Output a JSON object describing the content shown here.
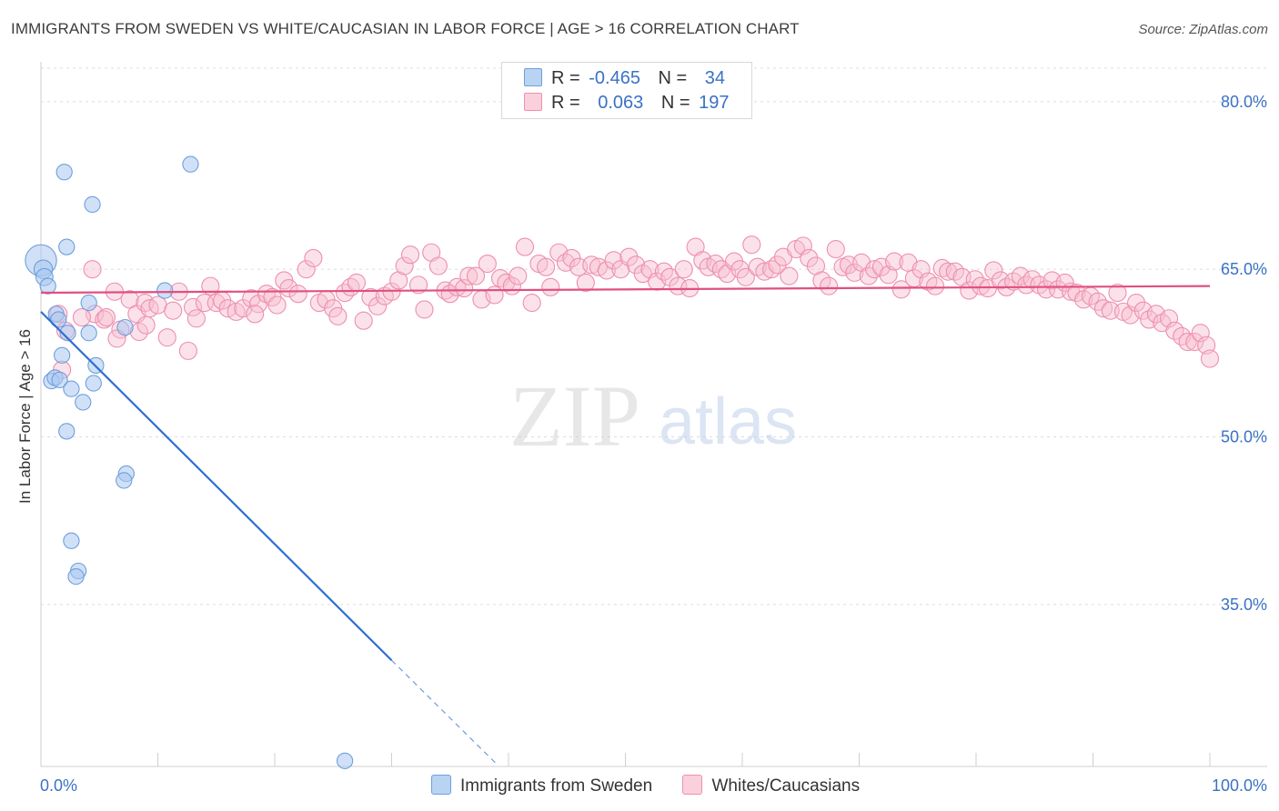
{
  "title": "IMMIGRANTS FROM SWEDEN VS WHITE/CAUCASIAN IN LABOR FORCE | AGE > 16 CORRELATION CHART",
  "source": "Source: ZipAtlas.com",
  "watermark": {
    "zip": "ZIP",
    "atlas": "atlas"
  },
  "legend": {
    "r_label": "R =",
    "n_label": "N =",
    "series1": {
      "r": "-0.465",
      "n": "34"
    },
    "series2": {
      "r": "0.063",
      "n": "197"
    }
  },
  "bottom_legend": {
    "series1": "Immigrants from Sweden",
    "series2": "Whites/Caucasians"
  },
  "colors": {
    "blue_fill": "#a9c8f0",
    "blue_stroke": "#6f9fdc",
    "blue_line": "#2f6fd0",
    "pink_fill": "#f7bfd0",
    "pink_stroke": "#ee8fae",
    "pink_line": "#e0507e",
    "axis_text": "#3a72c4"
  },
  "chart_data": {
    "type": "scatter",
    "title": "IMMIGRANTS FROM SWEDEN VS WHITE/CAUCASIAN IN LABOR FORCE | AGE > 16 CORRELATION CHART",
    "xlabel": "",
    "ylabel": "In Labor Force | Age > 16",
    "xlim": [
      0,
      100
    ],
    "ylim": [
      20.5,
      83
    ],
    "x_tick_labels": [
      "0.0%",
      "100.0%"
    ],
    "y_ticks": [
      35,
      50,
      65,
      80
    ],
    "y_tick_labels": [
      "35.0%",
      "50.0%",
      "65.0%",
      "80.0%"
    ],
    "grid": true,
    "series": [
      {
        "name": "Immigrants from Sweden",
        "color": "blue",
        "trend": {
          "x0": 0,
          "y0": 61.2,
          "x1": 30,
          "y1": 30.0,
          "dash_to_x": 39,
          "dash_to_y": 20.7
        },
        "points": [
          [
            0.0,
            65.8,
            22
          ],
          [
            0.2,
            65.0,
            13
          ],
          [
            0.3,
            64.3,
            12
          ],
          [
            0.6,
            63.5,
            11
          ],
          [
            2.0,
            73.7,
            11
          ],
          [
            2.2,
            67.0,
            11
          ],
          [
            4.4,
            70.8,
            11
          ],
          [
            12.8,
            74.4,
            11
          ],
          [
            4.1,
            62.0,
            11
          ],
          [
            1.3,
            61.0,
            11
          ],
          [
            1.5,
            60.5,
            11
          ],
          [
            2.3,
            59.3,
            11
          ],
          [
            4.1,
            59.3,
            11
          ],
          [
            7.2,
            59.8,
            11
          ],
          [
            10.6,
            63.1,
            11
          ],
          [
            1.8,
            57.3,
            11
          ],
          [
            4.7,
            56.4,
            11
          ],
          [
            0.9,
            55.0,
            11
          ],
          [
            1.2,
            55.3,
            11
          ],
          [
            1.6,
            55.1,
            11
          ],
          [
            4.5,
            54.8,
            11
          ],
          [
            2.6,
            54.3,
            11
          ],
          [
            3.6,
            53.1,
            11
          ],
          [
            2.2,
            50.5,
            11
          ],
          [
            7.3,
            46.7,
            11
          ],
          [
            7.1,
            46.1,
            11
          ],
          [
            2.6,
            40.7,
            11
          ],
          [
            3.2,
            38.0,
            11
          ],
          [
            3.0,
            37.5,
            11
          ],
          [
            26.0,
            21.0,
            11
          ]
        ]
      },
      {
        "name": "Whites/Caucasians",
        "color": "pink",
        "trend": {
          "x0": 0,
          "y0": 62.9,
          "x1": 100,
          "y1": 63.5
        },
        "points": [
          [
            1.5,
            61.0
          ],
          [
            2.1,
            59.5
          ],
          [
            1.8,
            56.0
          ],
          [
            4.4,
            65.0
          ],
          [
            4.6,
            61.0
          ],
          [
            5.4,
            60.5
          ],
          [
            5.6,
            60.7
          ],
          [
            6.3,
            63.0
          ],
          [
            6.8,
            59.6
          ],
          [
            6.5,
            58.8
          ],
          [
            7.6,
            62.3
          ],
          [
            8.2,
            61.0
          ],
          [
            8.4,
            59.4
          ],
          [
            8.9,
            62.0
          ],
          [
            9.3,
            61.5
          ],
          [
            10.0,
            61.8
          ],
          [
            10.8,
            58.9
          ],
          [
            11.3,
            61.3
          ],
          [
            11.8,
            63.0
          ],
          [
            12.6,
            57.7
          ],
          [
            13.0,
            61.6
          ],
          [
            13.3,
            60.6
          ],
          [
            14.0,
            62.0
          ],
          [
            14.5,
            63.5
          ],
          [
            15.0,
            62.0
          ],
          [
            15.5,
            62.2
          ],
          [
            16.0,
            61.5
          ],
          [
            16.7,
            61.2
          ],
          [
            17.3,
            61.5
          ],
          [
            18.0,
            62.4
          ],
          [
            18.6,
            61.9
          ],
          [
            19.3,
            62.8
          ],
          [
            19.8,
            62.5
          ],
          [
            20.2,
            61.8
          ],
          [
            20.8,
            64.0
          ],
          [
            21.2,
            63.3
          ],
          [
            22.0,
            62.8
          ],
          [
            22.7,
            65.0
          ],
          [
            23.3,
            66.0
          ],
          [
            23.8,
            62.0
          ],
          [
            24.4,
            62.3
          ],
          [
            25.0,
            61.5
          ],
          [
            25.4,
            60.8
          ],
          [
            26.0,
            62.9
          ],
          [
            26.5,
            63.4
          ],
          [
            27.0,
            63.8
          ],
          [
            27.6,
            60.4
          ],
          [
            28.2,
            62.5
          ],
          [
            28.8,
            61.7
          ],
          [
            29.4,
            62.6
          ],
          [
            30.0,
            63.0
          ],
          [
            30.6,
            64.0
          ],
          [
            31.1,
            65.3
          ],
          [
            31.6,
            66.3
          ],
          [
            32.3,
            63.6
          ],
          [
            32.8,
            61.4
          ],
          [
            33.4,
            66.5
          ],
          [
            34.0,
            65.3
          ],
          [
            34.6,
            63.1
          ],
          [
            35.0,
            62.8
          ],
          [
            35.6,
            63.4
          ],
          [
            36.2,
            63.3
          ],
          [
            36.6,
            64.4
          ],
          [
            37.2,
            64.4
          ],
          [
            37.7,
            62.3
          ],
          [
            38.2,
            65.5
          ],
          [
            38.8,
            62.7
          ],
          [
            39.3,
            64.2
          ],
          [
            39.8,
            63.8
          ],
          [
            40.3,
            63.5
          ],
          [
            40.8,
            64.4
          ],
          [
            41.4,
            67.0
          ],
          [
            42.0,
            62.0
          ],
          [
            42.6,
            65.5
          ],
          [
            43.2,
            65.2
          ],
          [
            43.6,
            63.4
          ],
          [
            44.3,
            66.5
          ],
          [
            44.9,
            65.6
          ],
          [
            45.4,
            66.0
          ],
          [
            46.0,
            65.2
          ],
          [
            46.6,
            63.8
          ],
          [
            47.1,
            65.4
          ],
          [
            47.7,
            65.2
          ],
          [
            48.4,
            64.9
          ],
          [
            49.0,
            65.8
          ],
          [
            49.6,
            65.0
          ],
          [
            50.3,
            66.1
          ],
          [
            50.9,
            65.4
          ],
          [
            51.5,
            64.6
          ],
          [
            52.1,
            65.0
          ],
          [
            52.7,
            63.9
          ],
          [
            53.3,
            64.8
          ],
          [
            53.8,
            64.3
          ],
          [
            54.5,
            63.5
          ],
          [
            55.0,
            65.0
          ],
          [
            55.5,
            63.3
          ],
          [
            56.0,
            67.0
          ],
          [
            56.6,
            65.8
          ],
          [
            57.1,
            65.2
          ],
          [
            57.7,
            65.5
          ],
          [
            58.2,
            65.0
          ],
          [
            58.7,
            64.6
          ],
          [
            59.3,
            65.7
          ],
          [
            59.8,
            65.0
          ],
          [
            60.3,
            64.3
          ],
          [
            60.8,
            67.2
          ],
          [
            61.3,
            65.2
          ],
          [
            61.9,
            64.8
          ],
          [
            62.5,
            65.0
          ],
          [
            63.0,
            65.4
          ],
          [
            63.5,
            66.1
          ],
          [
            64.0,
            64.4
          ],
          [
            64.6,
            66.8
          ],
          [
            65.2,
            67.1
          ],
          [
            65.7,
            66.0
          ],
          [
            66.3,
            65.3
          ],
          [
            66.8,
            64.0
          ],
          [
            67.4,
            63.5
          ],
          [
            68.0,
            66.8
          ],
          [
            68.6,
            65.2
          ],
          [
            69.1,
            65.4
          ],
          [
            69.6,
            64.7
          ],
          [
            70.2,
            65.6
          ],
          [
            70.8,
            64.4
          ],
          [
            71.3,
            65.0
          ],
          [
            71.9,
            65.2
          ],
          [
            72.5,
            64.5
          ],
          [
            73.0,
            65.7
          ],
          [
            73.6,
            63.2
          ],
          [
            74.2,
            65.6
          ],
          [
            74.7,
            64.2
          ],
          [
            75.3,
            65.0
          ],
          [
            75.9,
            63.9
          ],
          [
            76.5,
            63.5
          ],
          [
            77.1,
            65.1
          ],
          [
            77.6,
            64.8
          ],
          [
            78.2,
            64.8
          ],
          [
            78.8,
            64.3
          ],
          [
            79.4,
            63.1
          ],
          [
            79.9,
            64.1
          ],
          [
            80.4,
            63.5
          ],
          [
            81.0,
            63.3
          ],
          [
            81.5,
            64.9
          ],
          [
            82.1,
            64.0
          ],
          [
            82.6,
            63.4
          ],
          [
            83.2,
            63.9
          ],
          [
            83.8,
            64.4
          ],
          [
            84.3,
            63.6
          ],
          [
            84.8,
            64.1
          ],
          [
            85.4,
            63.6
          ],
          [
            86.0,
            63.2
          ],
          [
            86.5,
            64.0
          ],
          [
            87.0,
            63.2
          ],
          [
            87.6,
            63.8
          ],
          [
            88.1,
            63.0
          ],
          [
            88.6,
            62.9
          ],
          [
            89.2,
            62.3
          ],
          [
            89.8,
            62.6
          ],
          [
            90.4,
            62.1
          ],
          [
            90.9,
            61.5
          ],
          [
            91.5,
            61.3
          ],
          [
            92.1,
            62.9
          ],
          [
            92.6,
            61.2
          ],
          [
            93.2,
            60.9
          ],
          [
            93.7,
            62.0
          ],
          [
            94.3,
            61.3
          ],
          [
            94.8,
            60.5
          ],
          [
            95.4,
            61.0
          ],
          [
            95.9,
            60.2
          ],
          [
            96.5,
            60.6
          ],
          [
            97.0,
            59.5
          ],
          [
            97.6,
            59.0
          ],
          [
            98.1,
            58.5
          ],
          [
            98.7,
            58.5
          ],
          [
            99.2,
            59.3
          ],
          [
            99.7,
            58.2
          ],
          [
            100.0,
            57.0
          ],
          [
            3.5,
            60.7
          ],
          [
            9.0,
            60.0
          ],
          [
            18.3,
            61.0
          ]
        ]
      }
    ]
  }
}
